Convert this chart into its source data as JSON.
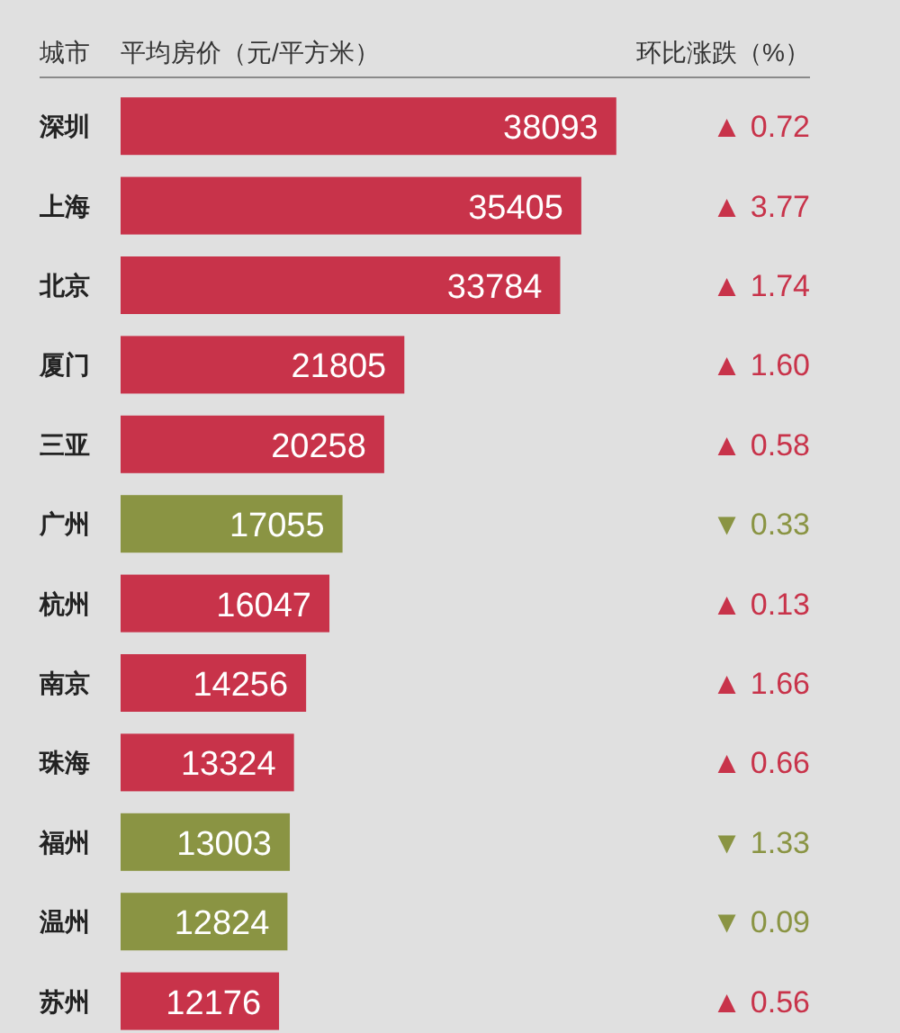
{
  "chart_data": {
    "type": "bar",
    "orientation": "horizontal",
    "ylabel": "城市",
    "xlabel": "平均房价（元/平方米）",
    "categories": [
      "深圳",
      "上海",
      "北京",
      "厦门",
      "三亚",
      "广州",
      "杭州",
      "南京",
      "珠海",
      "福州",
      "温州",
      "苏州"
    ],
    "data_labels": true,
    "tick_labels": "y",
    "values": [
      38093,
      35405,
      33784,
      21805,
      20258,
      17055,
      16047,
      14256,
      13324,
      13003,
      12824,
      12176
    ],
    "colors": [
      "#c8334a",
      "#c8334a",
      "#c8334a",
      "#c8334a",
      "#c8334a",
      "#8a9443",
      "#c8334a",
      "#c8334a",
      "#c8334a",
      "#8a9443",
      "#8a9443",
      "#c8334a"
    ],
    "annotations": [
      "环比涨跌（%）",
      "▲ 0.72",
      "▲ 3.77",
      "▲ 1.74",
      "▲ 1.60",
      "▲ 0.58",
      "▼ 0.33",
      "▲ 0.13",
      "▲ 1.66",
      "▲ 0.66",
      "▼ 1.33",
      "▼ 0.09",
      "▲ 0.56"
    ]
  }
}
